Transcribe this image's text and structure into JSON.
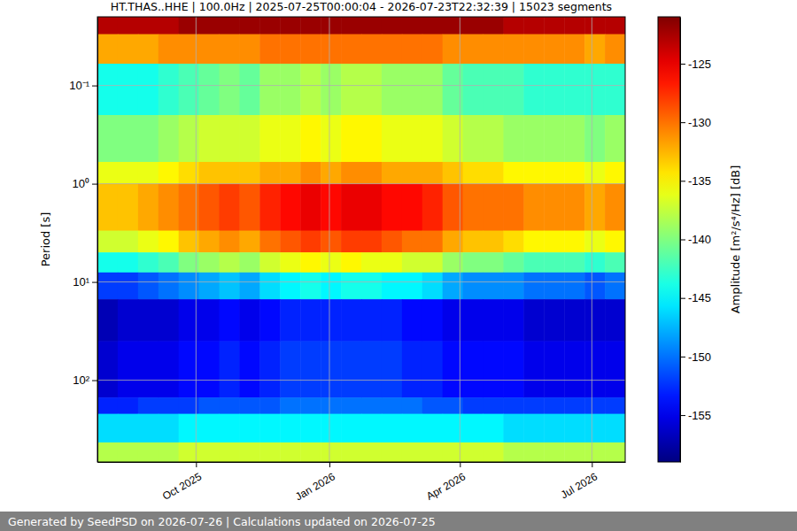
{
  "chart_data": {
    "type": "heatmap",
    "title": "HT.THAS..HHE | 100.0Hz | 2025-07-25T00:00:04 - 2026-07-23T22:32:39 | 15023 segments",
    "y_label": "Period [s]",
    "footer": "Generated by SeedPSD on 2026-07-26 | Calculations updated on 2026-07-25",
    "log": "y",
    "grid": true,
    "color": "jet",
    "xlim": [
      "2025-07-25",
      "2026-07-24"
    ],
    "xticks": [
      {
        "value": "2025-10-01",
        "label": "Oct 2025"
      },
      {
        "value": "2026-01-01",
        "label": "Jan 2026"
      },
      {
        "value": "2026-04-01",
        "label": "Apr 2026"
      },
      {
        "value": "2026-07-01",
        "label": "Jul 2026"
      }
    ],
    "ylim": [
      0.02,
      680
    ],
    "yticks": [
      {
        "value": 0.1,
        "label": "10⁻¹"
      },
      {
        "value": 1,
        "label": "10⁰"
      },
      {
        "value": 10,
        "label": "10¹"
      },
      {
        "value": 100,
        "label": "10²"
      }
    ],
    "x_edges": [
      "2025-07-25",
      "2025-08-08",
      "2025-08-22",
      "2025-09-05",
      "2025-09-19",
      "2025-10-03",
      "2025-10-17",
      "2025-10-31",
      "2025-11-14",
      "2025-11-28",
      "2025-12-12",
      "2025-12-26",
      "2026-01-09",
      "2026-01-23",
      "2026-02-06",
      "2026-02-20",
      "2026-03-06",
      "2026-03-20",
      "2026-04-03",
      "2026-04-17",
      "2026-05-01",
      "2026-05-15",
      "2026-05-29",
      "2026-06-12",
      "2026-06-26",
      "2026-07-10",
      "2026-07-24"
    ],
    "y_edges": [
      0.02,
      0.03,
      0.06,
      0.2,
      0.6,
      1,
      3,
      5,
      8,
      15,
      40,
      150,
      220,
      430,
      680
    ],
    "z": [
      [
        -123,
        -123,
        -123,
        -123,
        -122,
        -122,
        -122,
        -122,
        -122,
        -122,
        -122,
        -122,
        -122,
        -122,
        -122,
        -122,
        -122,
        -122,
        -122,
        -122,
        -123,
        -123,
        -123,
        -123,
        -123,
        -123
      ],
      [
        -132,
        -132,
        -132,
        -131,
        -131,
        -131,
        -131,
        -131,
        -130,
        -130,
        -130,
        -130,
        -130,
        -130,
        -130,
        -130,
        -130,
        -131,
        -131,
        -131,
        -131,
        -131,
        -131,
        -131,
        -132,
        -131
      ],
      [
        -144,
        -144,
        -144,
        -143,
        -142,
        -141,
        -140,
        -141,
        -139,
        -139,
        -138,
        -139,
        -138,
        -138,
        -139,
        -139,
        -139,
        -141,
        -142,
        -142,
        -142,
        -143,
        -143,
        -143,
        -143,
        -143
      ],
      [
        -140,
        -140,
        -140,
        -139,
        -138,
        -137,
        -137,
        -137,
        -136,
        -136,
        -135,
        -136,
        -135,
        -135,
        -136,
        -136,
        -136,
        -137,
        -138,
        -138,
        -139,
        -139,
        -139,
        -139,
        -140,
        -139
      ],
      [
        -136,
        -136,
        -136,
        -135,
        -134,
        -133,
        -133,
        -133,
        -132,
        -132,
        -131,
        -132,
        -131,
        -131,
        -132,
        -132,
        -132,
        -133,
        -134,
        -134,
        -135,
        -135,
        -135,
        -135,
        -136,
        -135
      ],
      [
        -133,
        -133,
        -132,
        -131,
        -130,
        -129,
        -128,
        -129,
        -127,
        -126,
        -125,
        -126,
        -125,
        -125,
        -126,
        -126,
        -127,
        -129,
        -130,
        -130,
        -130,
        -131,
        -131,
        -131,
        -132,
        -131
      ],
      [
        -137,
        -137,
        -136,
        -135,
        -133,
        -132,
        -131,
        -132,
        -130,
        -129,
        -128,
        -129,
        -128,
        -128,
        -129,
        -130,
        -130,
        -132,
        -133,
        -133,
        -134,
        -135,
        -135,
        -135,
        -136,
        -135
      ],
      [
        -144,
        -144,
        -143,
        -142,
        -140,
        -139,
        -138,
        -139,
        -137,
        -136,
        -135,
        -136,
        -135,
        -136,
        -136,
        -137,
        -137,
        -139,
        -140,
        -140,
        -141,
        -142,
        -142,
        -142,
        -143,
        -142
      ],
      [
        -152,
        -152,
        -151,
        -150,
        -149,
        -148,
        -147,
        -148,
        -146,
        -145,
        -144,
        -145,
        -144,
        -144,
        -145,
        -145,
        -146,
        -148,
        -149,
        -149,
        -149,
        -150,
        -150,
        -150,
        -151,
        -150
      ],
      [
        -157,
        -156,
        -156,
        -156,
        -155,
        -155,
        -154,
        -155,
        -154,
        -153,
        -153,
        -153,
        -153,
        -153,
        -153,
        -154,
        -154,
        -155,
        -155,
        -155,
        -155,
        -156,
        -156,
        -156,
        -156,
        -156
      ],
      [
        -156,
        -155,
        -155,
        -155,
        -154,
        -154,
        -153,
        -154,
        -153,
        -152,
        -152,
        -152,
        -152,
        -152,
        -152,
        -153,
        -153,
        -154,
        -154,
        -154,
        -154,
        -155,
        -155,
        -155,
        -155,
        -155
      ],
      [
        -153,
        -153,
        -152,
        -152,
        -152,
        -151,
        -151,
        -151,
        -151,
        -150,
        -150,
        -150,
        -150,
        -150,
        -150,
        -150,
        -151,
        -151,
        -152,
        -152,
        -152,
        -152,
        -152,
        -152,
        -152,
        -152
      ],
      [
        -146,
        -146,
        -146,
        -146,
        -145,
        -145,
        -145,
        -145,
        -145,
        -145,
        -145,
        -145,
        -145,
        -145,
        -145,
        -145,
        -145,
        -145,
        -145,
        -145,
        -146,
        -146,
        -146,
        -146,
        -146,
        -146
      ],
      [
        -138,
        -138,
        -138,
        -138,
        -137,
        -137,
        -137,
        -137,
        -137,
        -137,
        -137,
        -137,
        -137,
        -137,
        -137,
        -137,
        -137,
        -137,
        -137,
        -137,
        -138,
        -138,
        -138,
        -138,
        -138,
        -138
      ]
    ],
    "colorbar": {
      "label": "Amplitude [m²/s⁴/Hz] [dB]",
      "range": [
        -159,
        -121
      ],
      "ticks": [
        -155,
        -150,
        -145,
        -140,
        -135,
        -130,
        -125
      ]
    }
  }
}
